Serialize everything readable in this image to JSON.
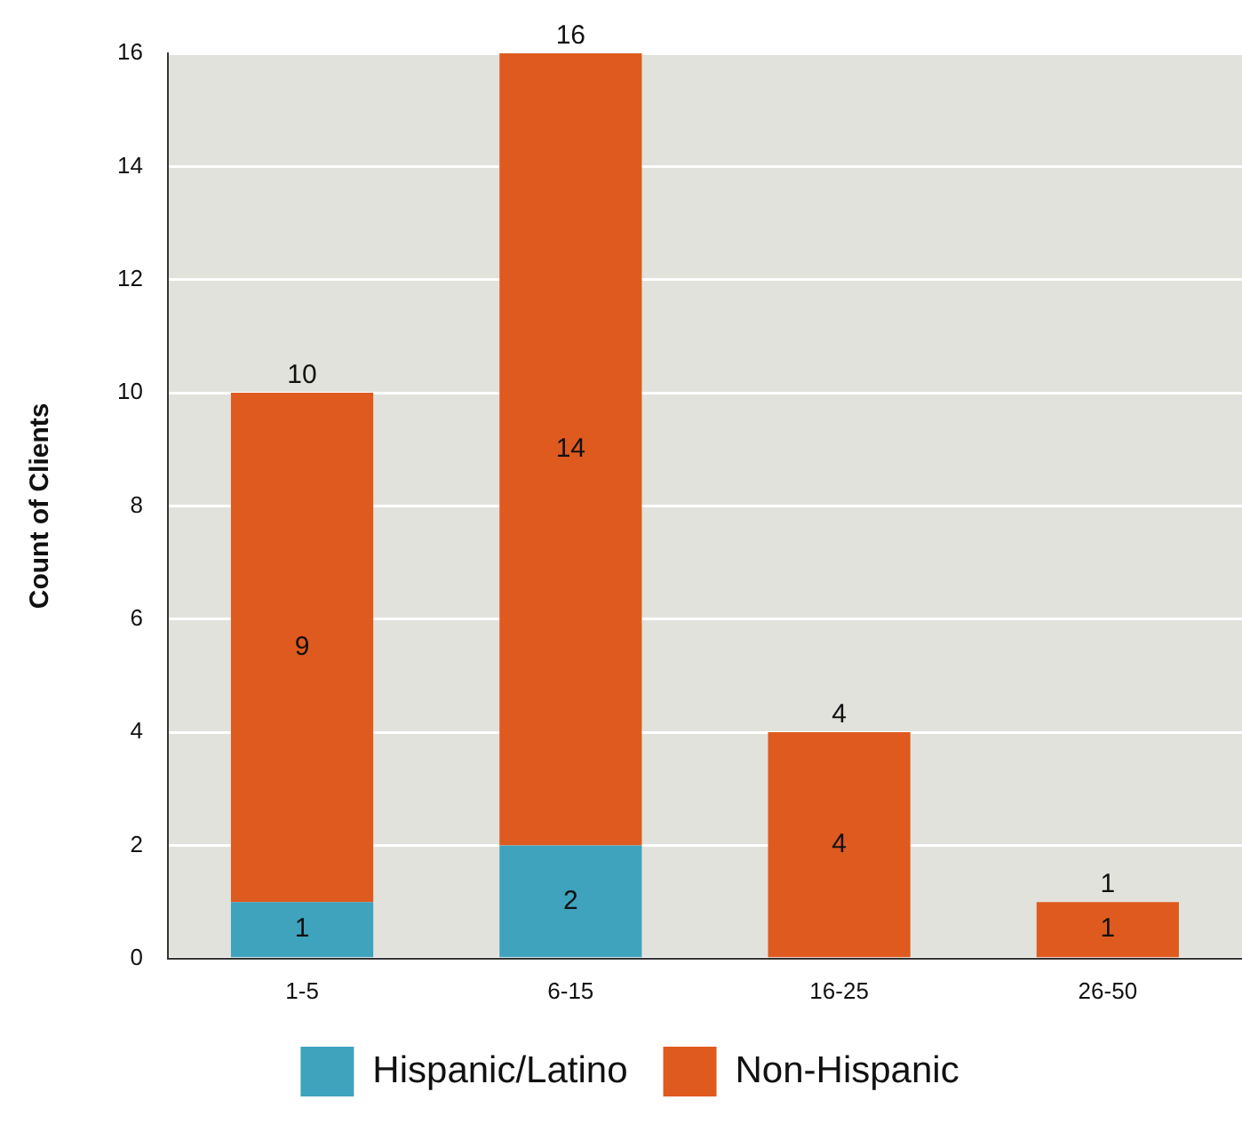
{
  "chart_data": {
    "type": "bar",
    "ylabel": "Count of Clients",
    "categories": [
      "1-5",
      "6-15",
      "16-25",
      "26-50"
    ],
    "stacked": true,
    "series": [
      {
        "name": "Hispanic/Latino",
        "color": "#3fa3bd",
        "values": [
          1,
          2,
          0,
          0
        ],
        "value_labels": [
          "1",
          "2",
          null,
          null
        ]
      },
      {
        "name": "Non-Hispanic",
        "color": "#df5a1f",
        "values": [
          9,
          14,
          4,
          1
        ],
        "value_labels": [
          "9",
          "14",
          "4",
          "1"
        ]
      }
    ],
    "totals": [
      "10",
      "16",
      "4",
      "1"
    ],
    "ylim": [
      0,
      16
    ],
    "yticks": [
      0,
      2,
      4,
      6,
      8,
      10,
      12,
      14,
      16
    ],
    "grid": "y",
    "legend": "bottom"
  }
}
